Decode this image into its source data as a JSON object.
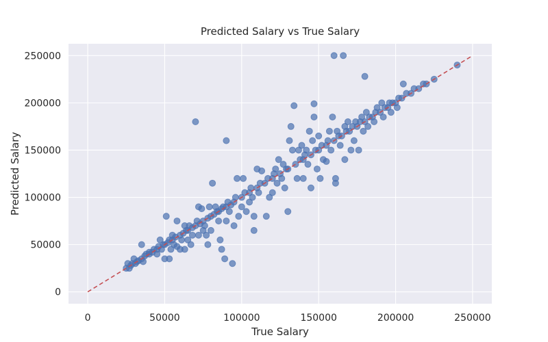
{
  "chart_data": {
    "type": "scatter",
    "title": "Predicted Salary vs True Salary",
    "xlabel": "True Salary",
    "ylabel": "Predicted Salary",
    "xlim": [
      -12500,
      262500
    ],
    "ylim": [
      -12500,
      262500
    ],
    "xticks": [
      0,
      50000,
      100000,
      150000,
      200000,
      250000
    ],
    "yticks": [
      0,
      50000,
      100000,
      150000,
      200000,
      250000
    ],
    "xtick_labels": [
      "0",
      "50000",
      "100000",
      "150000",
      "200000",
      "250000"
    ],
    "ytick_labels": [
      "0",
      "50000",
      "100000",
      "150000",
      "200000",
      "250000"
    ],
    "grid": true,
    "colors": {
      "background": "#eaeaf2",
      "grid": "#ffffff",
      "points": "#4c72b0",
      "reference_line": "#c44e52"
    },
    "reference_line": {
      "from": [
        0,
        0
      ],
      "to": [
        250000,
        250000
      ],
      "style": "dashed"
    },
    "series": [
      {
        "points": [
          [
            25000,
            25000
          ],
          [
            26000,
            30000
          ],
          [
            27000,
            25000
          ],
          [
            28000,
            28000
          ],
          [
            29000,
            30000
          ],
          [
            30000,
            35000
          ],
          [
            31000,
            30000
          ],
          [
            32000,
            32000
          ],
          [
            33000,
            33000
          ],
          [
            35000,
            35000
          ],
          [
            35000,
            50000
          ],
          [
            36000,
            32000
          ],
          [
            37000,
            38000
          ],
          [
            38000,
            40000
          ],
          [
            40000,
            40000
          ],
          [
            40000,
            42000
          ],
          [
            42000,
            42000
          ],
          [
            43000,
            45000
          ],
          [
            45000,
            45000
          ],
          [
            45000,
            40000
          ],
          [
            46000,
            48000
          ],
          [
            47000,
            55000
          ],
          [
            48000,
            45000
          ],
          [
            49000,
            50000
          ],
          [
            50000,
            50000
          ],
          [
            50000,
            35000
          ],
          [
            51000,
            80000
          ],
          [
            52000,
            52000
          ],
          [
            53000,
            55000
          ],
          [
            53000,
            35000
          ],
          [
            54000,
            45000
          ],
          [
            55000,
            55000
          ],
          [
            55000,
            60000
          ],
          [
            56000,
            50000
          ],
          [
            57000,
            58000
          ],
          [
            58000,
            75000
          ],
          [
            58000,
            48000
          ],
          [
            60000,
            60000
          ],
          [
            60000,
            45000
          ],
          [
            61000,
            55000
          ],
          [
            62000,
            62000
          ],
          [
            63000,
            70000
          ],
          [
            63000,
            45000
          ],
          [
            64000,
            65000
          ],
          [
            65000,
            65000
          ],
          [
            65000,
            55000
          ],
          [
            66000,
            70000
          ],
          [
            67000,
            50000
          ],
          [
            68000,
            68000
          ],
          [
            68000,
            60000
          ],
          [
            70000,
            70000
          ],
          [
            70000,
            180000
          ],
          [
            71000,
            75000
          ],
          [
            72000,
            90000
          ],
          [
            72000,
            60000
          ],
          [
            73000,
            72000
          ],
          [
            74000,
            88000
          ],
          [
            75000,
            75000
          ],
          [
            75000,
            65000
          ],
          [
            76000,
            70000
          ],
          [
            77000,
            60000
          ],
          [
            78000,
            78000
          ],
          [
            78000,
            50000
          ],
          [
            79000,
            90000
          ],
          [
            80000,
            80000
          ],
          [
            80000,
            65000
          ],
          [
            81000,
            115000
          ],
          [
            82000,
            82000
          ],
          [
            83000,
            90000
          ],
          [
            84000,
            85000
          ],
          [
            85000,
            85000
          ],
          [
            85000,
            75000
          ],
          [
            86000,
            55000
          ],
          [
            87000,
            88000
          ],
          [
            87000,
            45000
          ],
          [
            88000,
            90000
          ],
          [
            89000,
            35000
          ],
          [
            90000,
            90000
          ],
          [
            90000,
            160000
          ],
          [
            90000,
            75000
          ],
          [
            91000,
            95000
          ],
          [
            92000,
            85000
          ],
          [
            93000,
            92000
          ],
          [
            94000,
            30000
          ],
          [
            95000,
            95000
          ],
          [
            95000,
            70000
          ],
          [
            96000,
            100000
          ],
          [
            97000,
            120000
          ],
          [
            98000,
            80000
          ],
          [
            100000,
            100000
          ],
          [
            100000,
            90000
          ],
          [
            101000,
            120000
          ],
          [
            102000,
            105000
          ],
          [
            103000,
            85000
          ],
          [
            105000,
            105000
          ],
          [
            105000,
            95000
          ],
          [
            106000,
            110000
          ],
          [
            107000,
            100000
          ],
          [
            108000,
            65000
          ],
          [
            108000,
            80000
          ],
          [
            110000,
            110000
          ],
          [
            110000,
            130000
          ],
          [
            111000,
            105000
          ],
          [
            112000,
            115000
          ],
          [
            113000,
            128000
          ],
          [
            115000,
            115000
          ],
          [
            116000,
            80000
          ],
          [
            117000,
            120000
          ],
          [
            118000,
            100000
          ],
          [
            120000,
            120000
          ],
          [
            120000,
            105000
          ],
          [
            121000,
            125000
          ],
          [
            122000,
            130000
          ],
          [
            123000,
            115000
          ],
          [
            124000,
            140000
          ],
          [
            125000,
            125000
          ],
          [
            126000,
            120000
          ],
          [
            127000,
            135000
          ],
          [
            128000,
            110000
          ],
          [
            129000,
            130000
          ],
          [
            130000,
            130000
          ],
          [
            130000,
            85000
          ],
          [
            131000,
            160000
          ],
          [
            132000,
            175000
          ],
          [
            133000,
            150000
          ],
          [
            134000,
            197000
          ],
          [
            135000,
            135000
          ],
          [
            136000,
            120000
          ],
          [
            137000,
            150000
          ],
          [
            138000,
            140000
          ],
          [
            139000,
            155000
          ],
          [
            140000,
            140000
          ],
          [
            140000,
            120000
          ],
          [
            141000,
            145000
          ],
          [
            142000,
            150000
          ],
          [
            143000,
            135000
          ],
          [
            144000,
            170000
          ],
          [
            145000,
            145000
          ],
          [
            145000,
            110000
          ],
          [
            146000,
            160000
          ],
          [
            147000,
            185000
          ],
          [
            147000,
            199000
          ],
          [
            148000,
            150000
          ],
          [
            149000,
            130000
          ],
          [
            150000,
            150000
          ],
          [
            150000,
            165000
          ],
          [
            151000,
            120000
          ],
          [
            152000,
            155000
          ],
          [
            153000,
            140000
          ],
          [
            155000,
            155000
          ],
          [
            155000,
            138000
          ],
          [
            156000,
            160000
          ],
          [
            157000,
            170000
          ],
          [
            158000,
            150000
          ],
          [
            159000,
            185000
          ],
          [
            160000,
            160000
          ],
          [
            160000,
            250000
          ],
          [
            161000,
            115000
          ],
          [
            161000,
            120000
          ],
          [
            162000,
            170000
          ],
          [
            163000,
            165000
          ],
          [
            164000,
            155000
          ],
          [
            165000,
            165000
          ],
          [
            166000,
            250000
          ],
          [
            167000,
            140000
          ],
          [
            167000,
            175000
          ],
          [
            168000,
            170000
          ],
          [
            169000,
            180000
          ],
          [
            170000,
            170000
          ],
          [
            171000,
            150000
          ],
          [
            172000,
            175000
          ],
          [
            173000,
            160000
          ],
          [
            174000,
            180000
          ],
          [
            175000,
            175000
          ],
          [
            176000,
            150000
          ],
          [
            177000,
            180000
          ],
          [
            178000,
            185000
          ],
          [
            179000,
            170000
          ],
          [
            180000,
            180000
          ],
          [
            180000,
            228000
          ],
          [
            181000,
            190000
          ],
          [
            182000,
            175000
          ],
          [
            183000,
            185000
          ],
          [
            185000,
            185000
          ],
          [
            186000,
            180000
          ],
          [
            187000,
            190000
          ],
          [
            188000,
            195000
          ],
          [
            190000,
            190000
          ],
          [
            191000,
            200000
          ],
          [
            192000,
            185000
          ],
          [
            193000,
            195000
          ],
          [
            195000,
            195000
          ],
          [
            196000,
            200000
          ],
          [
            197000,
            190000
          ],
          [
            198000,
            200000
          ],
          [
            200000,
            200000
          ],
          [
            201000,
            195000
          ],
          [
            202000,
            205000
          ],
          [
            204000,
            205000
          ],
          [
            205000,
            220000
          ],
          [
            207000,
            210000
          ],
          [
            210000,
            210000
          ],
          [
            212000,
            215000
          ],
          [
            215000,
            215000
          ],
          [
            218000,
            220000
          ],
          [
            220000,
            220000
          ],
          [
            225000,
            225000
          ],
          [
            240000,
            240000
          ]
        ]
      }
    ]
  }
}
